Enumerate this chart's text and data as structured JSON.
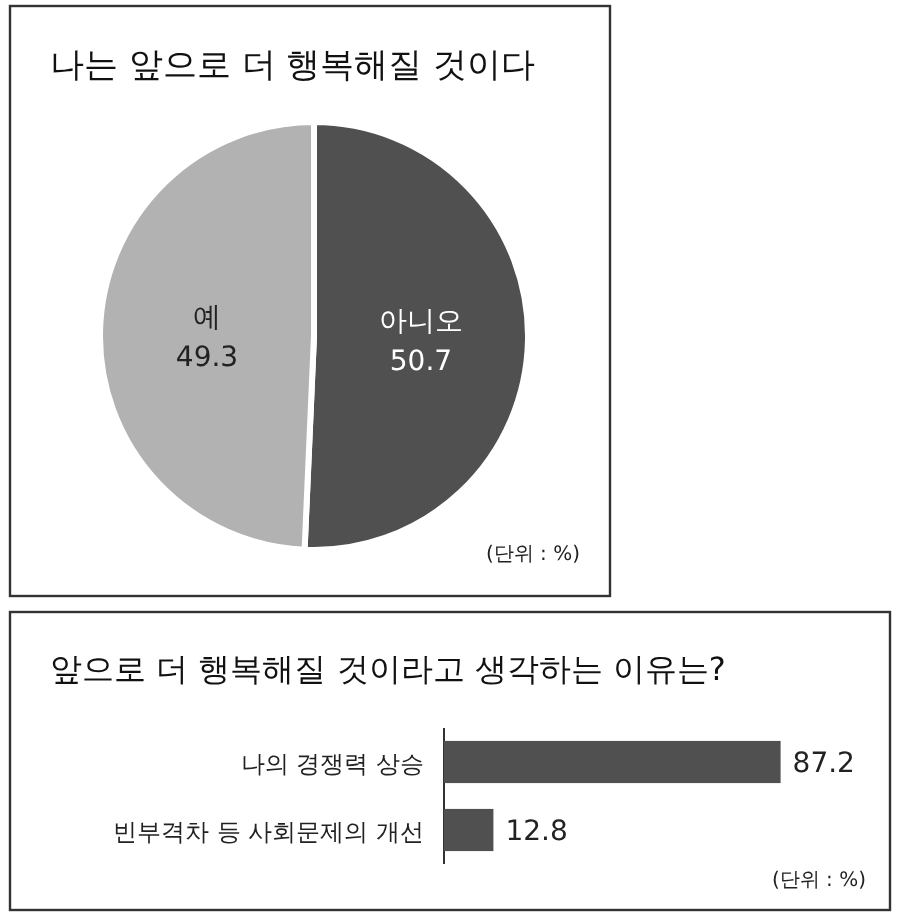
{
  "chart_data": [
    {
      "type": "pie",
      "title": "나는 앞으로 더 행복해질 것이다",
      "categories": [
        "아니오",
        "예"
      ],
      "values": [
        50.7,
        49.3
      ],
      "colors": [
        "#505050",
        "#b2b2b2"
      ],
      "data_labels": true,
      "annotations": [
        "(단위 : %)"
      ]
    },
    {
      "type": "bar",
      "orientation": "horizontal",
      "title": "앞으로 더 행복해질 것이라고 생각하는 이유는?",
      "categories": [
        "나의 경쟁력 상승",
        "빈부격차 등 사회문제의 개선"
      ],
      "values": [
        87.2,
        12.8
      ],
      "color": "#505050",
      "data_labels": true,
      "annotations": [
        "(단위 : %)"
      ]
    }
  ]
}
